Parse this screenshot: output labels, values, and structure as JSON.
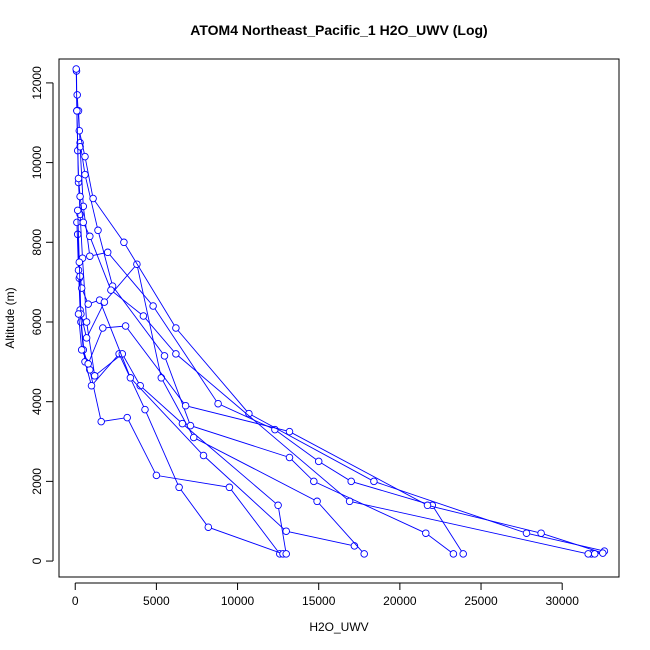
{
  "chart_data": {
    "type": "line",
    "title": "ATOM4 Northeast_Pacific_1 H2O_UWV (Log)",
    "xlabel": "H2O_UWV",
    "ylabel": "Altitude (m)",
    "xlim": [
      -1000,
      33500
    ],
    "ylim": [
      -400,
      12600
    ],
    "x_ticks": [
      0,
      5000,
      10000,
      15000,
      20000,
      25000,
      30000
    ],
    "y_ticks": [
      0,
      2000,
      4000,
      6000,
      8000,
      10000,
      12000
    ],
    "grid": false,
    "legend": "none",
    "colors": {
      "series": "#0000ff",
      "axis": "#000000",
      "background": "#ffffff"
    },
    "series": [
      {
        "x": [
          12600,
          9500,
          5000,
          3200,
          1600,
          900,
          500,
          350,
          250,
          150
        ],
        "y": [
          180,
          1850,
          2150,
          3600,
          3500,
          4800,
          5300,
          6000,
          7100,
          8200
        ]
      },
      {
        "x": [
          12800,
          8200,
          6400,
          4300,
          2700,
          1000,
          600,
          300,
          200,
          100
        ],
        "y": [
          180,
          850,
          1850,
          3800,
          5200,
          4400,
          5000,
          6300,
          7300,
          8500
        ]
      },
      {
        "x": [
          13000,
          12500,
          6600,
          4000,
          2900,
          1200,
          700,
          450,
          300,
          200,
          150,
          100,
          80
        ],
        "y": [
          180,
          1400,
          3450,
          4400,
          5200,
          4650,
          6000,
          7600,
          8700,
          9500,
          10300,
          11300,
          12300
        ]
      },
      {
        "x": [
          17200,
          13000,
          7900,
          3400,
          1500,
          800,
          400,
          300
        ],
        "y": [
          380,
          750,
          2650,
          4600,
          6550,
          6450,
          6850,
          7150
        ]
      },
      {
        "x": [
          17800,
          14900,
          7300,
          5300,
          3800,
          1800,
          700,
          350,
          250,
          150
        ],
        "y": [
          180,
          1500,
          3100,
          4600,
          7450,
          6500,
          5600,
          6200,
          7500,
          8800
        ]
      },
      {
        "x": [
          23300,
          21600,
          14700,
          13200,
          7100,
          5500,
          2300,
          1400,
          600,
          300,
          200
        ],
        "y": [
          180,
          700,
          2000,
          2600,
          3400,
          5150,
          6900,
          8300,
          9700,
          10500,
          11300
        ]
      },
      {
        "x": [
          23900,
          22000,
          17000,
          15000,
          12300,
          8800,
          4800,
          2000,
          900,
          500,
          300
        ],
        "y": [
          180,
          1400,
          2000,
          2500,
          3300,
          3950,
          6400,
          7750,
          7650,
          8900,
          10400
        ]
      },
      {
        "x": [
          31800,
          32600,
          27800,
          18400,
          10700,
          6200,
          3000,
          1100,
          600,
          250,
          120
        ],
        "y": [
          180,
          250,
          700,
          2000,
          3700,
          5850,
          8000,
          9100,
          10150,
          10800,
          11700
        ]
      },
      {
        "x": [
          32000,
          32500,
          28700,
          21700,
          13200,
          6800,
          3100,
          1700,
          800,
          400,
          200
        ],
        "y": [
          180,
          200,
          700,
          1400,
          3250,
          3900,
          5900,
          5850,
          4950,
          5300,
          6200
        ]
      },
      {
        "x": [
          31600,
          16900,
          6200,
          4200,
          2200,
          900,
          500,
          300,
          200,
          100,
          60
        ],
        "y": [
          180,
          1500,
          5200,
          6150,
          6800,
          8150,
          8500,
          9150,
          9600,
          11300,
          12350
        ]
      }
    ]
  }
}
